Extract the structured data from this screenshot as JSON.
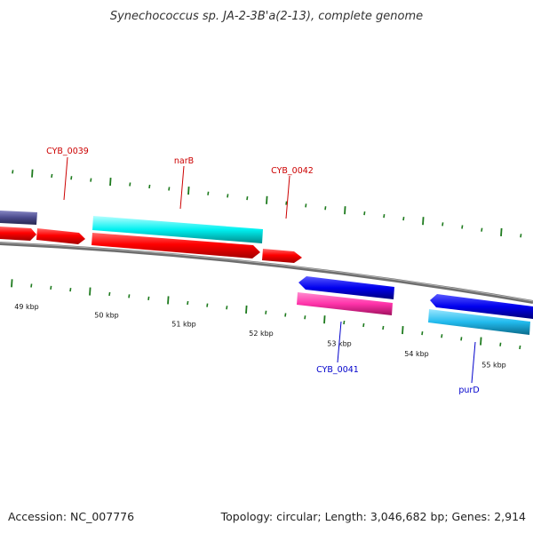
{
  "title": "Synechococcus sp. JA-2-3B'a(2-13), complete genome",
  "footer": {
    "accession": "Accession: NC_007776",
    "summary": "Topology: circular; Length: 3,046,682 bp; Genes: 2,914"
  },
  "colors": {
    "backbone": "#808080",
    "tick": "#1d7a1d",
    "label_top": "#cc0000",
    "label_bottom": "#0000cc",
    "red_gene": "#ff0000",
    "cyan_gene": "#00ffff",
    "blue_gene": "#0000ff",
    "magenta_gene": "#ff33aa",
    "purple_gene": "#4a4a8c",
    "lightblue_gene": "#22bbee"
  },
  "kbp_labels": [
    "49 kbp",
    "50 kbp",
    "51 kbp",
    "52 kbp",
    "53 kbp",
    "54 kbp",
    "55 kbp"
  ],
  "gene_labels": [
    {
      "text": "CYB_0039",
      "side": "top"
    },
    {
      "text": "narB",
      "side": "top"
    },
    {
      "text": "CYB_0042",
      "side": "top"
    },
    {
      "text": "CYB_0041",
      "side": "bottom"
    },
    {
      "text": "purD",
      "side": "bottom"
    }
  ]
}
